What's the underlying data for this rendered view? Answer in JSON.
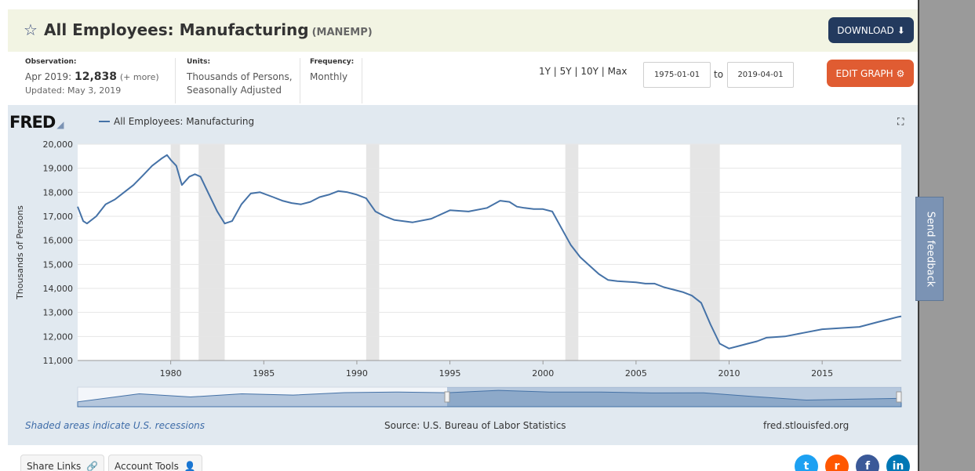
{
  "header": {
    "title": "All Employees: Manufacturing",
    "series_id": "(MANEMP)",
    "download_label": "DOWNLOAD",
    "edit_label": "EDIT GRAPH"
  },
  "meta": {
    "observation_label": "Observation:",
    "observation_date": "Apr 2019:",
    "observation_value": "12,838",
    "observation_more": "(+ more)",
    "updated": "Updated: May 3, 2019",
    "units_label": "Units:",
    "units_line1": "Thousands of Persons,",
    "units_line2": "Seasonally Adjusted",
    "frequency_label": "Frequency:",
    "frequency_value": "Monthly"
  },
  "range": {
    "links": [
      "1Y",
      "5Y",
      "10Y",
      "Max"
    ],
    "separator": "|",
    "start": "1975-01-01",
    "to_label": "to",
    "end": "2019-04-01"
  },
  "chart_header": {
    "logo": "FRED",
    "legend": "All Employees: Manufacturing"
  },
  "chart_data": {
    "type": "line",
    "title": "All Employees: Manufacturing",
    "ylabel": "Thousands of Persons",
    "xlim": [
      1975.0,
      2019.25
    ],
    "ylim": [
      11000,
      20000
    ],
    "yticks": [
      11000,
      12000,
      13000,
      14000,
      15000,
      16000,
      17000,
      18000,
      19000,
      20000
    ],
    "ytick_labels": [
      "11,000",
      "12,000",
      "13,000",
      "14,000",
      "15,000",
      "16,000",
      "17,000",
      "18,000",
      "19,000",
      "20,000"
    ],
    "xticks": [
      1980,
      1985,
      1990,
      1995,
      2000,
      2005,
      2010,
      2015
    ],
    "xtick_labels": [
      "1980",
      "1985",
      "1990",
      "1995",
      "2000",
      "2005",
      "2010",
      "2015"
    ],
    "recessions": [
      [
        1980.0,
        1980.5
      ],
      [
        1981.5,
        1982.9
      ],
      [
        1990.5,
        1991.2
      ],
      [
        2001.2,
        2001.9
      ],
      [
        2007.9,
        2009.5
      ]
    ],
    "series": [
      {
        "name": "All Employees: Manufacturing",
        "color": "#4572a7",
        "x": [
          1975.0,
          1975.3,
          1975.5,
          1976.0,
          1976.5,
          1977.0,
          1977.5,
          1978.0,
          1978.5,
          1979.0,
          1979.5,
          1979.8,
          1980.0,
          1980.3,
          1980.6,
          1981.0,
          1981.3,
          1981.6,
          1982.0,
          1982.5,
          1982.9,
          1983.3,
          1983.8,
          1984.3,
          1984.8,
          1985.5,
          1986.0,
          1986.5,
          1987.0,
          1987.5,
          1988.0,
          1988.5,
          1989.0,
          1989.5,
          1990.0,
          1990.5,
          1991.0,
          1991.5,
          1992.0,
          1993.0,
          1994.0,
          1995.0,
          1996.0,
          1997.0,
          1997.7,
          1998.2,
          1998.6,
          1999.0,
          1999.5,
          2000.0,
          2000.5,
          2001.0,
          2001.5,
          2002.0,
          2002.5,
          2003.0,
          2003.5,
          2004.0,
          2005.0,
          2005.5,
          2006.0,
          2006.5,
          2007.0,
          2007.5,
          2008.0,
          2008.5,
          2009.0,
          2009.5,
          2010.0,
          2010.5,
          2011.0,
          2011.5,
          2012.0,
          2013.0,
          2014.0,
          2015.0,
          2016.0,
          2017.0,
          2018.0,
          2018.5,
          2019.0,
          2019.25
        ],
        "values": [
          17400,
          16800,
          16700,
          17000,
          17500,
          17700,
          18000,
          18300,
          18700,
          19100,
          19400,
          19550,
          19350,
          19100,
          18300,
          18650,
          18750,
          18650,
          18000,
          17200,
          16700,
          16800,
          17500,
          17950,
          18000,
          17800,
          17650,
          17550,
          17500,
          17600,
          17800,
          17900,
          18050,
          18000,
          17900,
          17750,
          17200,
          17000,
          16850,
          16750,
          16900,
          17250,
          17200,
          17350,
          17650,
          17600,
          17400,
          17350,
          17300,
          17300,
          17200,
          16500,
          15800,
          15300,
          14950,
          14600,
          14350,
          14300,
          14250,
          14200,
          14200,
          14050,
          13950,
          13850,
          13700,
          13400,
          12500,
          11700,
          11500,
          11600,
          11700,
          11800,
          11950,
          12000,
          12150,
          12300,
          12350,
          12400,
          12600,
          12700,
          12800,
          12838
        ]
      }
    ]
  },
  "footer": {
    "recession_note": "Shaded areas indicate U.S. recessions",
    "source": "Source: U.S. Bureau of Labor Statistics",
    "site": "fred.stlouisfed.org"
  },
  "bottom": {
    "share": "Share Links",
    "account": "Account Tools"
  },
  "feedback": "Send feedback",
  "colors": {
    "line": "#4572a7",
    "download": "#233a5e",
    "edit": "#e05c32",
    "panel": "#e1e9f0",
    "recession": "#e5e5e5"
  }
}
